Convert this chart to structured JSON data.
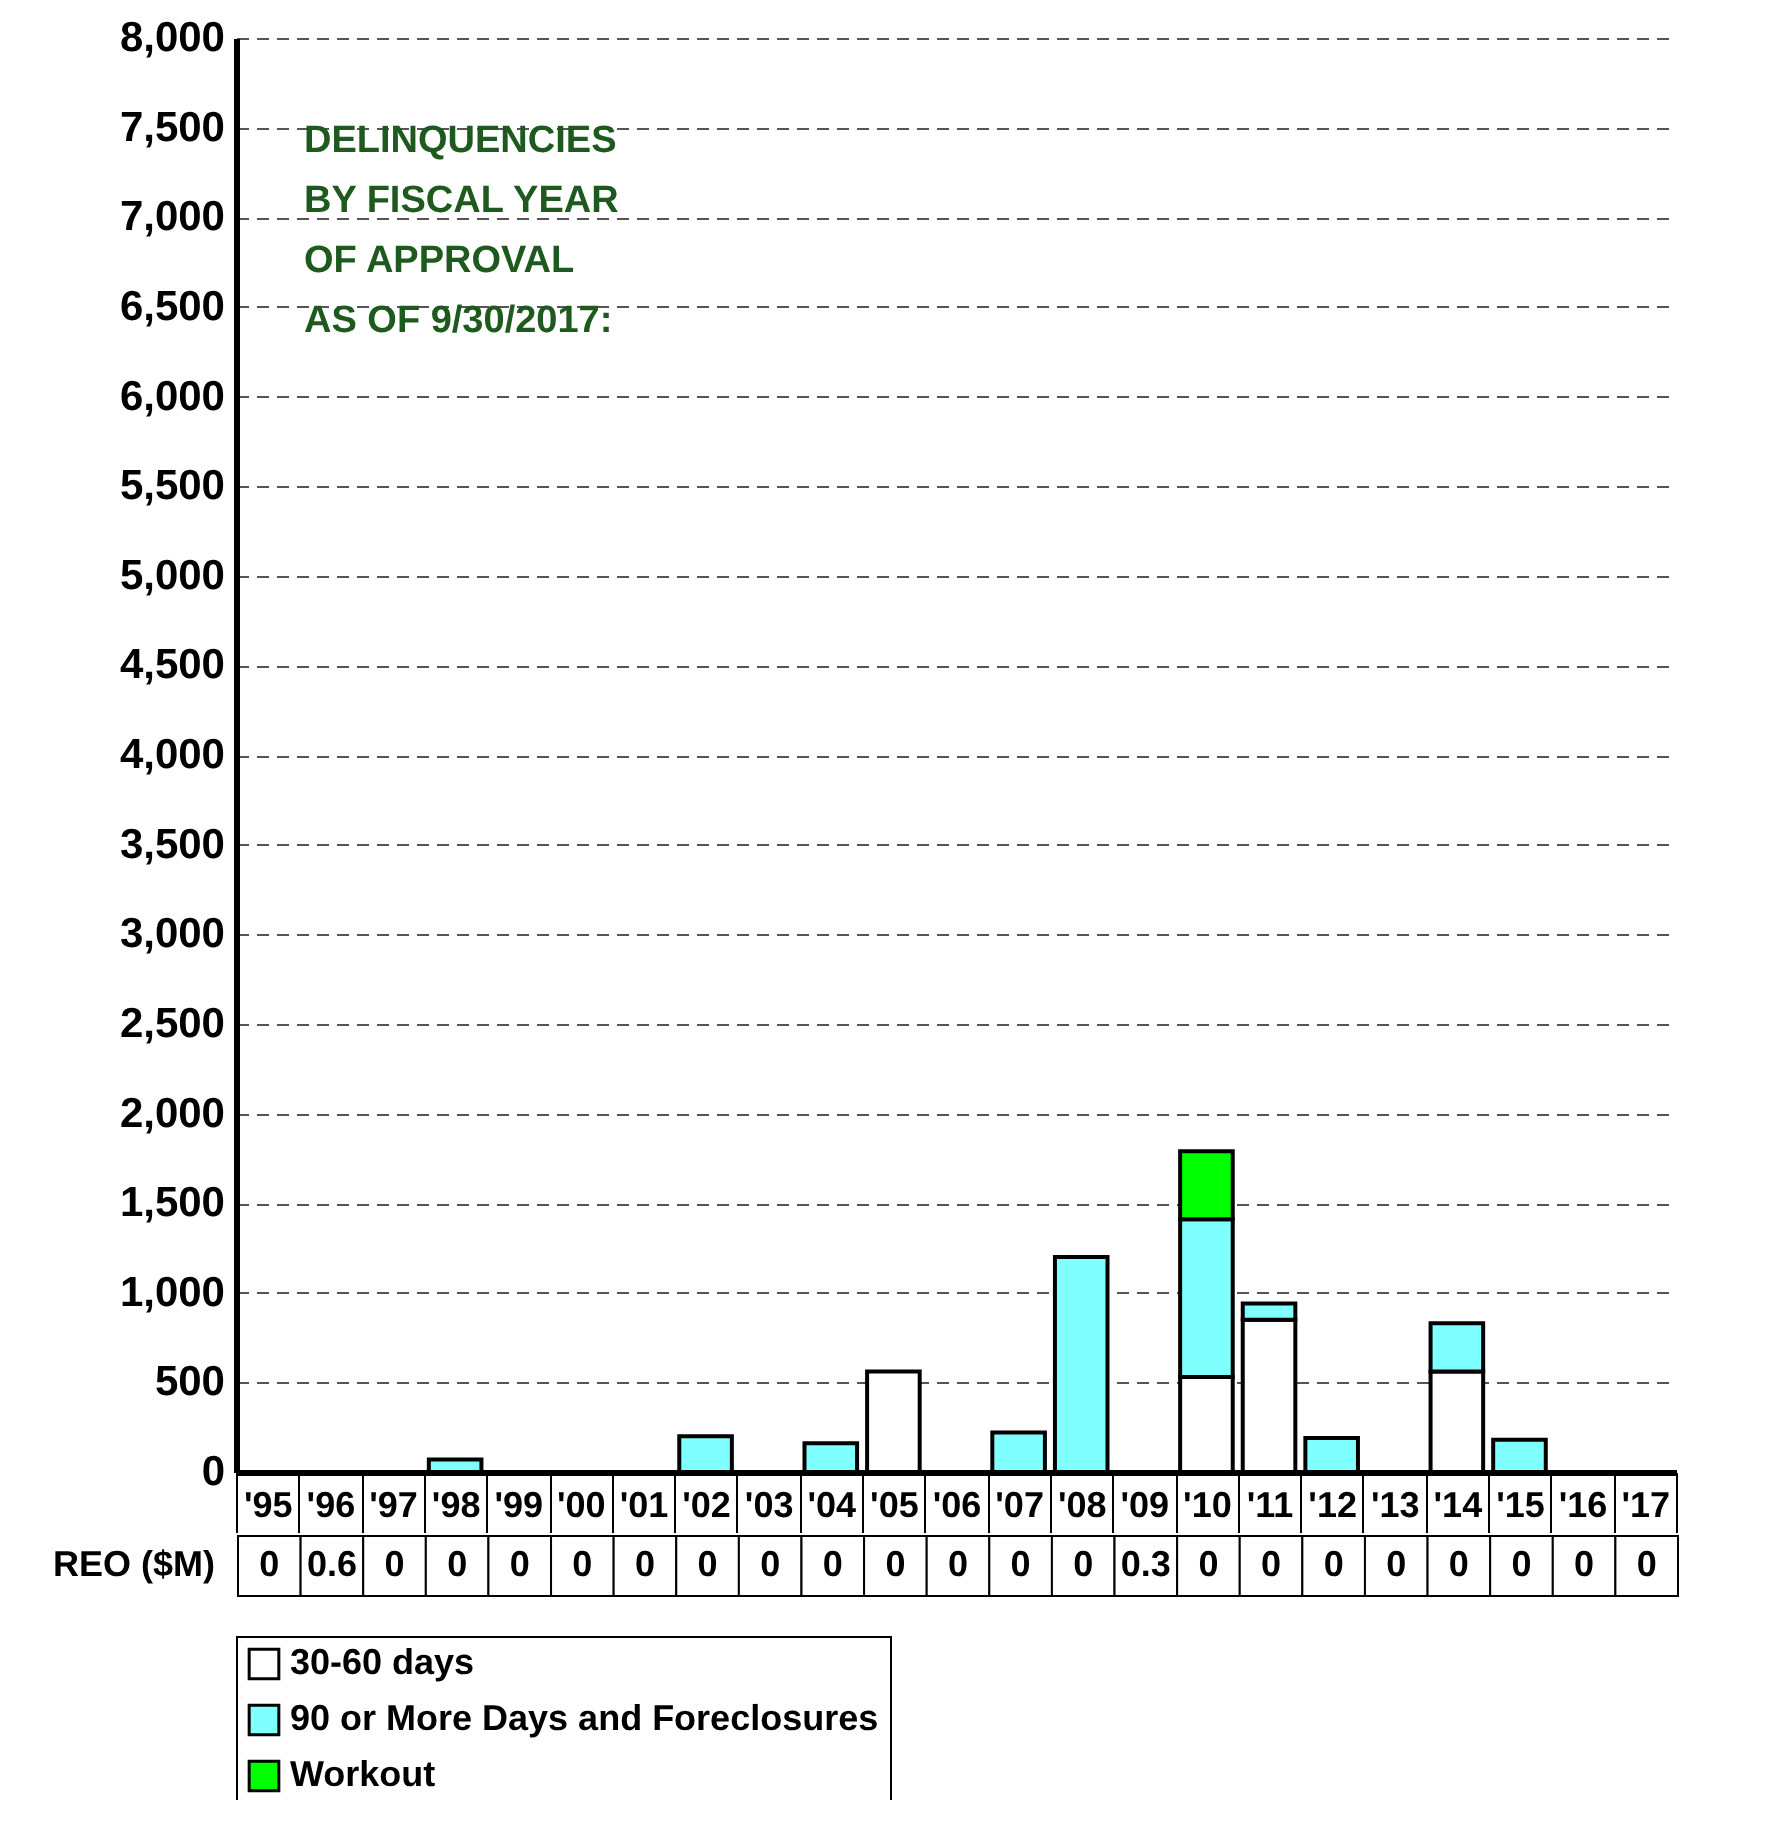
{
  "chart_data": [
    {
      "type": "bar",
      "title": "DELINQUENCIES\nBY FISCAL YEAR\nOF APPROVAL\nAS OF 9/30/2017:",
      "stacked": true,
      "categories": [
        "'95",
        "'96",
        "'97",
        "'98",
        "'99",
        "'00",
        "'01",
        "'02",
        "'03",
        "'04",
        "'05",
        "'06",
        "'07",
        "'08",
        "'09",
        "'10",
        "'11",
        "'12",
        "'13",
        "'14",
        "'15",
        "'16",
        "'17"
      ],
      "series": [
        {
          "name": "30-60 days",
          "color": "#ffffff",
          "values": [
            null,
            null,
            null,
            null,
            null,
            null,
            null,
            null,
            null,
            null,
            560,
            null,
            null,
            null,
            null,
            530,
            850,
            null,
            null,
            560,
            null,
            null,
            null
          ]
        },
        {
          "name": "90 or More Days and Foreclosures",
          "color": "#80ffff",
          "values": [
            null,
            null,
            null,
            70,
            null,
            null,
            null,
            200,
            null,
            160,
            null,
            null,
            220,
            1200,
            null,
            880,
            90,
            190,
            null,
            270,
            180,
            null,
            null
          ]
        },
        {
          "name": "Workout",
          "color": "#00ff00",
          "values": [
            null,
            null,
            null,
            null,
            null,
            null,
            null,
            null,
            null,
            null,
            null,
            null,
            null,
            null,
            null,
            380,
            null,
            null,
            null,
            null,
            null,
            null,
            null
          ]
        }
      ],
      "ylim": [
        0,
        8000
      ],
      "yticks": [
        0,
        {
          "value": 500,
          "label": "500"
        },
        {
          "value": 1000,
          "label": "1,000"
        },
        {
          "value": 1500,
          "label": "1,500"
        },
        {
          "value": 2000,
          "label": "2,000"
        },
        {
          "value": 2500,
          "label": "2,500"
        },
        {
          "value": 3000,
          "label": "3,000"
        },
        {
          "value": 3500,
          "label": "3,500"
        },
        {
          "value": 4000,
          "label": "4,000"
        },
        {
          "value": 4500,
          "label": "4,500"
        },
        {
          "value": 5000,
          "label": "5,000"
        },
        {
          "value": 5500,
          "label": "5,500"
        },
        {
          "value": 6000,
          "label": "6,000"
        },
        {
          "value": 6500,
          "label": "6,500"
        },
        {
          "value": 7000,
          "label": "7,000"
        },
        {
          "value": 7500,
          "label": "7,500"
        },
        {
          "value": 8000,
          "label": "8,000"
        }
      ],
      "grid": "y",
      "legend": "bottom"
    },
    {
      "type": "other",
      "categories": [
        null,
        null,
        null,
        null,
        null,
        null,
        null,
        null,
        null,
        null,
        null,
        null,
        null,
        null,
        null,
        null,
        null,
        null,
        null,
        null,
        null,
        null,
        null
      ],
      "series": [
        {
          "name": "REO ($M)",
          "values": [
            0,
            0.6,
            0,
            0,
            0,
            0,
            0,
            0,
            0,
            0,
            0,
            0,
            0,
            0,
            0.3,
            0,
            0,
            0,
            0,
            0,
            0,
            0,
            0
          ]
        }
      ],
      "data_labels": true
    }
  ]
}
